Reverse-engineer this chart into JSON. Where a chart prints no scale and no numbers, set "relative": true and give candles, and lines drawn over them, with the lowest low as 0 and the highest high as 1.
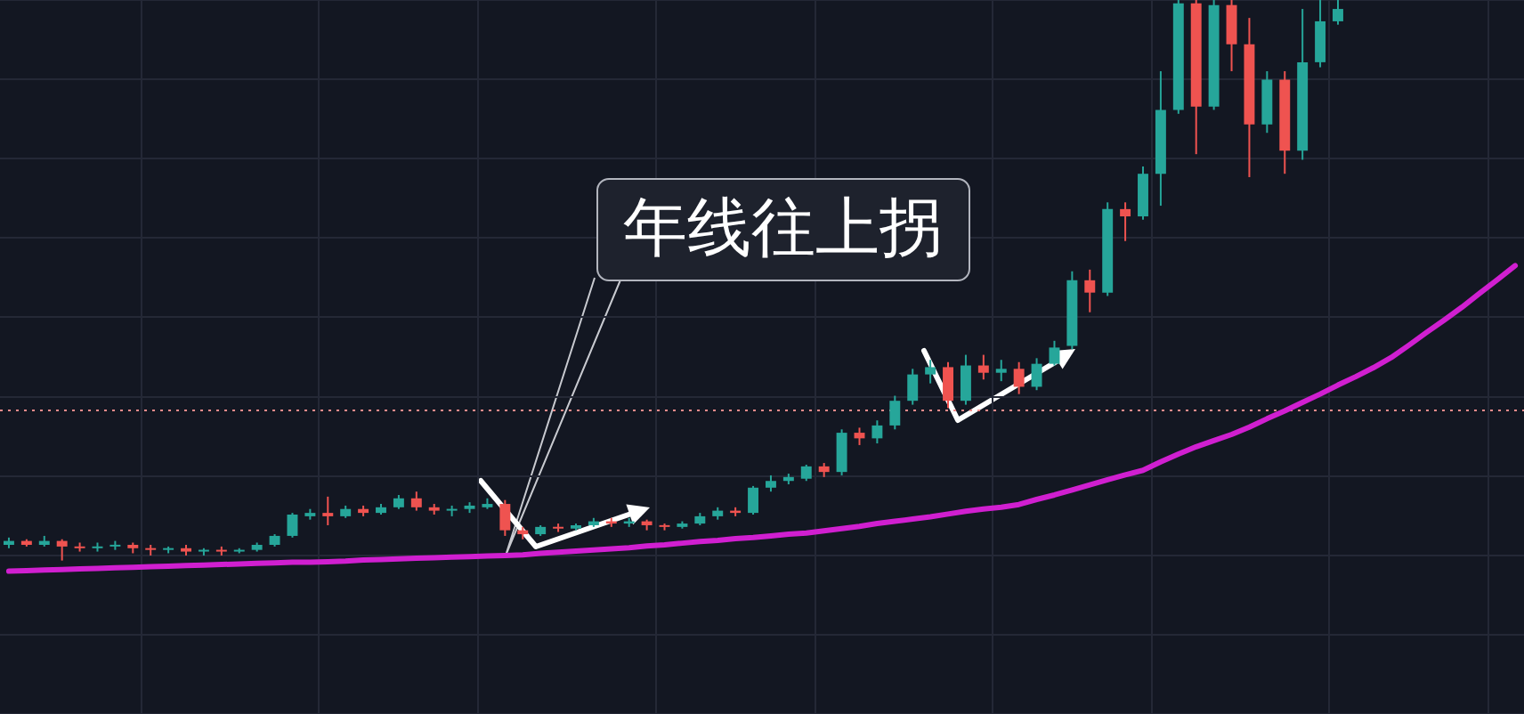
{
  "chart_data": {
    "type": "candlestick",
    "relative": true,
    "grid": true,
    "categories": [
      null,
      null,
      null,
      null,
      null,
      null,
      null,
      null,
      null,
      null,
      null,
      null,
      null,
      null,
      null,
      null,
      null,
      null,
      null,
      null,
      null,
      null,
      null,
      null,
      null,
      null,
      null,
      null,
      null,
      null,
      null,
      null,
      null,
      null,
      null,
      null,
      null,
      null,
      null,
      null,
      null,
      null,
      null,
      null,
      null,
      null,
      null,
      null,
      null,
      null,
      null,
      null,
      null,
      null,
      null,
      null,
      null,
      null,
      null,
      null,
      null,
      null,
      null,
      null,
      null,
      null,
      null,
      null,
      null,
      null,
      null,
      null,
      null,
      null,
      null,
      null,
      null,
      null,
      null,
      null,
      null,
      null,
      null,
      null,
      null,
      null
    ],
    "ohlc": [
      [
        0.028,
        0.041,
        0.022,
        0.035
      ],
      [
        0.035,
        0.038,
        0.025,
        0.028
      ],
      [
        0.028,
        0.044,
        0.025,
        0.035
      ],
      [
        0.035,
        0.038,
        0,
        0.025
      ],
      [
        0.025,
        0.032,
        0.016,
        0.022
      ],
      [
        0.022,
        0.032,
        0.016,
        0.025
      ],
      [
        0.025,
        0.035,
        0.019,
        0.028
      ],
      [
        0.028,
        0.032,
        0.013,
        0.022
      ],
      [
        0.022,
        0.028,
        0.009,
        0.019
      ],
      [
        0.019,
        0.025,
        0.013,
        0.022
      ],
      [
        0.022,
        0.028,
        0.009,
        0.016
      ],
      [
        0.016,
        0.022,
        0.009,
        0.019
      ],
      [
        0.019,
        0.025,
        0.009,
        0.016
      ],
      [
        0.016,
        0.022,
        0.013,
        0.019
      ],
      [
        0.019,
        0.032,
        0.016,
        0.028
      ],
      [
        0.028,
        0.047,
        0.025,
        0.044
      ],
      [
        0.044,
        0.085,
        0.041,
        0.082
      ],
      [
        0.079,
        0.092,
        0.073,
        0.085
      ],
      [
        0.085,
        0.114,
        0.063,
        0.079
      ],
      [
        0.079,
        0.098,
        0.076,
        0.092
      ],
      [
        0.092,
        0.098,
        0.079,
        0.085
      ],
      [
        0.085,
        0.101,
        0.082,
        0.095
      ],
      [
        0.095,
        0.117,
        0.092,
        0.111
      ],
      [
        0.111,
        0.123,
        0.089,
        0.095
      ],
      [
        0.095,
        0.101,
        0.082,
        0.089
      ],
      [
        0.089,
        0.098,
        0.079,
        0.092
      ],
      [
        0.092,
        0.104,
        0.085,
        0.098
      ],
      [
        0.095,
        0.111,
        0.092,
        0.101
      ],
      [
        0.101,
        0.108,
        0.044,
        0.054
      ],
      [
        0.054,
        0.06,
        0.038,
        0.047
      ],
      [
        0.047,
        0.063,
        0.044,
        0.06
      ],
      [
        0.06,
        0.066,
        0.051,
        0.057
      ],
      [
        0.057,
        0.066,
        0.054,
        0.063
      ],
      [
        0.063,
        0.076,
        0.06,
        0.07
      ],
      [
        0.07,
        0.076,
        0.06,
        0.066
      ],
      [
        0.066,
        0.076,
        0.06,
        0.07
      ],
      [
        0.07,
        0.073,
        0.054,
        0.063
      ],
      [
        0.063,
        0.066,
        0.054,
        0.06
      ],
      [
        0.06,
        0.07,
        0.057,
        0.066
      ],
      [
        0.066,
        0.085,
        0.063,
        0.079
      ],
      [
        0.079,
        0.095,
        0.073,
        0.089
      ],
      [
        0.089,
        0.095,
        0.079,
        0.085
      ],
      [
        0.085,
        0.133,
        0.082,
        0.13
      ],
      [
        0.13,
        0.152,
        0.123,
        0.142
      ],
      [
        0.142,
        0.155,
        0.136,
        0.149
      ],
      [
        0.146,
        0.171,
        0.142,
        0.168
      ],
      [
        0.168,
        0.174,
        0.149,
        0.158
      ],
      [
        0.158,
        0.234,
        0.152,
        0.228
      ],
      [
        0.228,
        0.237,
        0.206,
        0.218
      ],
      [
        0.218,
        0.25,
        0.209,
        0.241
      ],
      [
        0.241,
        0.294,
        0.234,
        0.285
      ],
      [
        0.285,
        0.342,
        0.278,
        0.332
      ],
      [
        0.332,
        0.358,
        0.316,
        0.345
      ],
      [
        0.345,
        0.354,
        0.272,
        0.285
      ],
      [
        0.285,
        0.367,
        0.278,
        0.348
      ],
      [
        0.348,
        0.367,
        0.323,
        0.335
      ],
      [
        0.335,
        0.358,
        0.32,
        0.342
      ],
      [
        0.342,
        0.354,
        0.297,
        0.31
      ],
      [
        0.31,
        0.361,
        0.304,
        0.351
      ],
      [
        0.351,
        0.392,
        0.348,
        0.38
      ],
      [
        0.383,
        0.516,
        0.377,
        0.5
      ],
      [
        0.5,
        0.519,
        0.443,
        0.478
      ],
      [
        0.478,
        0.639,
        0.472,
        0.627
      ],
      [
        0.627,
        0.639,
        0.57,
        0.614
      ],
      [
        0.614,
        0.703,
        0.608,
        0.69
      ],
      [
        0.69,
        0.873,
        0.633,
        0.804
      ],
      [
        0.804,
        1,
        0.797,
        0.994
      ],
      [
        0.994,
        1,
        0.725,
        0.81
      ],
      [
        0.81,
        1,
        0.804,
        0.991
      ],
      [
        0.991,
        1,
        0.873,
        0.921
      ],
      [
        0.921,
        0.968,
        0.684,
        0.778
      ],
      [
        0.778,
        0.873,
        0.763,
        0.858
      ],
      [
        0.858,
        0.873,
        0.69,
        0.731
      ],
      [
        0.731,
        0.984,
        0.715,
        0.889
      ],
      [
        0.889,
        1,
        0.88,
        0.962
      ],
      [
        0.962,
        1,
        0.956,
        0.984
      ],
      null,
      null,
      null,
      null,
      null,
      null,
      null,
      null,
      null,
      null
    ],
    "colors": [
      "#26a69a",
      "#ef5350",
      "#26a69a",
      "#ef5350",
      "#ef5350",
      "#26a69a",
      "#26a69a",
      "#ef5350",
      "#ef5350",
      "#26a69a",
      "#ef5350",
      "#26a69a",
      "#ef5350",
      "#26a69a",
      "#26a69a",
      "#26a69a",
      "#26a69a",
      "#26a69a",
      "#ef5350",
      "#26a69a",
      "#ef5350",
      "#26a69a",
      "#26a69a",
      "#ef5350",
      "#ef5350",
      "#26a69a",
      "#26a69a",
      "#26a69a",
      "#ef5350",
      "#ef5350",
      "#26a69a",
      "#ef5350",
      "#26a69a",
      "#26a69a",
      "#ef5350",
      "#26a69a",
      "#ef5350",
      "#ef5350",
      "#26a69a",
      "#26a69a",
      "#26a69a",
      "#ef5350",
      "#26a69a",
      "#26a69a",
      "#26a69a",
      "#26a69a",
      "#ef5350",
      "#26a69a",
      "#ef5350",
      "#26a69a",
      "#26a69a",
      "#26a69a",
      "#26a69a",
      "#ef5350",
      "#26a69a",
      "#ef5350",
      "#26a69a",
      "#ef5350",
      "#26a69a",
      "#26a69a",
      "#26a69a",
      "#ef5350",
      "#26a69a",
      "#ef5350",
      "#26a69a",
      "#26a69a",
      "#26a69a",
      "#ef5350",
      "#26a69a",
      "#ef5350",
      "#ef5350",
      "#26a69a",
      "#ef5350",
      "#26a69a",
      "#26a69a",
      "#26a69a",
      null,
      null,
      null,
      null,
      null,
      null,
      null,
      null,
      null,
      null
    ],
    "series": [
      {
        "type": "line",
        "color": "#d01fd0",
        "values": [
          -0.019,
          -0.018,
          -0.017,
          -0.016,
          -0.015,
          -0.014,
          -0.013,
          -0.012,
          -0.011,
          -0.01,
          -0.009,
          -0.008,
          -0.007,
          -0.006,
          -0.005,
          -0.004,
          -0.003,
          -0.003,
          -0.002,
          -0.001,
          0.001,
          0.002,
          0.003,
          0.004,
          0.005,
          0.006,
          0.007,
          0.008,
          0.009,
          0.01,
          0.013,
          0.015,
          0.017,
          0.019,
          0.021,
          0.023,
          0.026,
          0.028,
          0.031,
          0.034,
          0.036,
          0.039,
          0.041,
          0.044,
          0.047,
          0.049,
          0.053,
          0.057,
          0.061,
          0.066,
          0.07,
          0.074,
          0.078,
          0.083,
          0.088,
          0.092,
          0.095,
          0.1,
          0.109,
          0.117,
          0.126,
          0.135,
          0.144,
          0.153,
          0.161,
          0.176,
          0.19,
          0.203,
          0.214,
          0.225,
          0.238,
          0.253,
          0.267,
          0.282,
          0.297,
          0.313,
          0.328,
          0.344,
          0.362,
          0.384,
          0.407,
          0.429,
          0.452,
          0.477,
          0.501,
          0.526
        ]
      }
    ],
    "ref_lines": [
      {
        "axis": "y",
        "value": 0.269,
        "color": "#f28b8b",
        "line_style": "dotted"
      }
    ],
    "annotations": [
      "年线往上拐"
    ]
  }
}
